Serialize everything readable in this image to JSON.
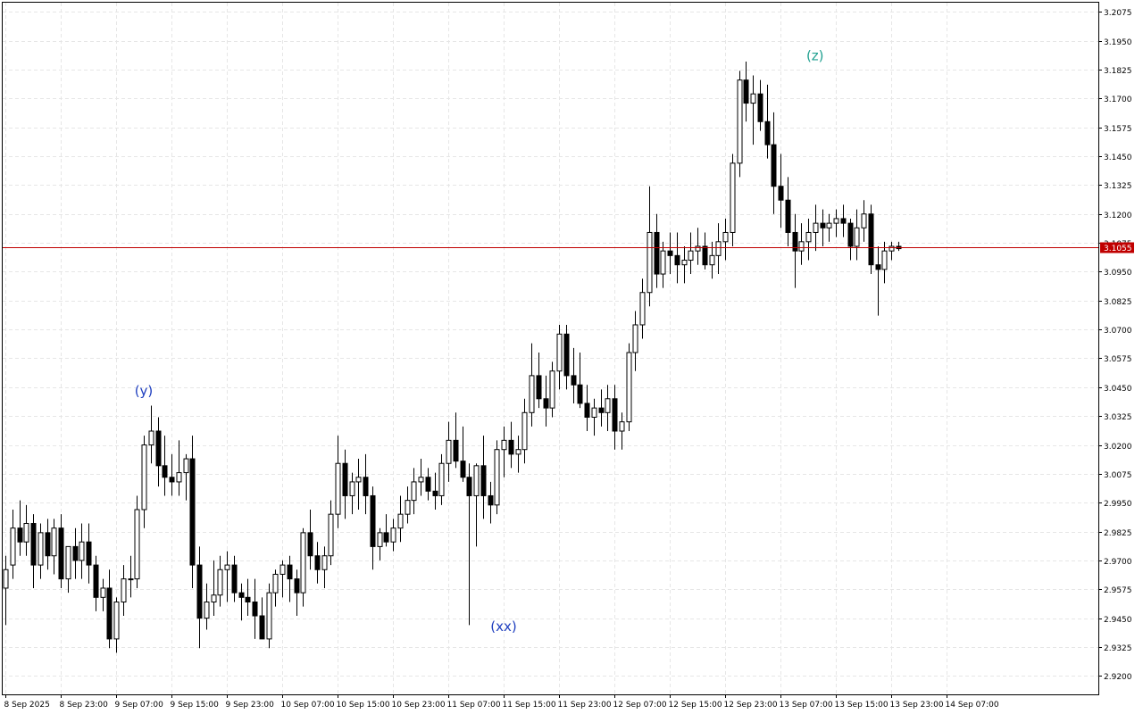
{
  "chart_data": {
    "type": "candlestick",
    "y_axis": {
      "ticks": [
        "3.2075",
        "3.1950",
        "3.1825",
        "3.1700",
        "3.1575",
        "3.1450",
        "3.1325",
        "3.1200",
        "3.1075",
        "3.0950",
        "3.0825",
        "3.0700",
        "3.0575",
        "3.0450",
        "3.0325",
        "3.0200",
        "3.0075",
        "2.9950",
        "2.9825",
        "2.9700",
        "2.9575",
        "2.9450",
        "2.9325",
        "2.9200"
      ],
      "range": [
        2.912,
        3.2115
      ],
      "side": "right"
    },
    "x_axis": {
      "ticks": [
        {
          "label": "8 Sep 2025",
          "bar": 0
        },
        {
          "label": "8 Sep 23:00",
          "bar": 8
        },
        {
          "label": "9 Sep 07:00",
          "bar": 16
        },
        {
          "label": "9 Sep 15:00",
          "bar": 24
        },
        {
          "label": "9 Sep 23:00",
          "bar": 32
        },
        {
          "label": "10 Sep 07:00",
          "bar": 40
        },
        {
          "label": "10 Sep 15:00",
          "bar": 48
        },
        {
          "label": "10 Sep 23:00",
          "bar": 56
        },
        {
          "label": "11 Sep 07:00",
          "bar": 64
        },
        {
          "label": "11 Sep 15:00",
          "bar": 72
        },
        {
          "label": "11 Sep 23:00",
          "bar": 80
        },
        {
          "label": "12 Sep 07:00",
          "bar": 88
        },
        {
          "label": "12 Sep 15:00",
          "bar": 96
        },
        {
          "label": "12 Sep 23:00",
          "bar": 104
        },
        {
          "label": "13 Sep 07:00",
          "bar": 112
        },
        {
          "label": "13 Sep 15:00",
          "bar": 120
        },
        {
          "label": "13 Sep 23:00",
          "bar": 128
        },
        {
          "label": "14 Sep 07:00",
          "bar": 136
        }
      ]
    },
    "grid": true,
    "current_price": {
      "value": 3.1055,
      "label": "3.1055",
      "color": "#c00000"
    },
    "annotations": [
      {
        "text": "(y)",
        "bar": 20,
        "price": 3.0415,
        "color": "#1f3fbf"
      },
      {
        "text": "(xx)",
        "bar": 72,
        "price": 2.9395,
        "color": "#1f3fbf"
      },
      {
        "text": "(z)",
        "bar": 117,
        "price": 3.1865,
        "color": "#20a090"
      }
    ],
    "candles": [
      [
        2.958,
        2.972,
        2.942,
        2.966
      ],
      [
        2.968,
        2.992,
        2.962,
        2.984
      ],
      [
        2.984,
        2.996,
        2.972,
        2.978
      ],
      [
        2.978,
        2.994,
        2.972,
        2.986
      ],
      [
        2.986,
        2.99,
        2.958,
        2.968
      ],
      [
        2.968,
        2.986,
        2.962,
        2.982
      ],
      [
        2.982,
        2.988,
        2.966,
        2.972
      ],
      [
        2.972,
        2.988,
        2.964,
        2.984
      ],
      [
        2.984,
        2.99,
        2.958,
        2.962
      ],
      [
        2.962,
        2.976,
        2.956,
        2.976
      ],
      [
        2.976,
        2.984,
        2.962,
        2.97
      ],
      [
        2.97,
        2.986,
        2.962,
        2.978
      ],
      [
        2.978,
        2.986,
        2.96,
        2.968
      ],
      [
        2.968,
        2.972,
        2.948,
        2.954
      ],
      [
        2.954,
        2.962,
        2.948,
        2.958
      ],
      [
        2.958,
        2.966,
        2.932,
        2.936
      ],
      [
        2.936,
        2.954,
        2.93,
        2.952
      ],
      [
        2.952,
        2.968,
        2.946,
        2.962
      ],
      [
        2.962,
        2.972,
        2.954,
        2.962
      ],
      [
        2.962,
        2.998,
        2.958,
        2.992
      ],
      [
        2.992,
        3.024,
        2.984,
        3.02
      ],
      [
        3.02,
        3.037,
        3.012,
        3.026
      ],
      [
        3.026,
        3.032,
        3.002,
        3.011
      ],
      [
        3.011,
        3.024,
        2.998,
        3.006
      ],
      [
        3.006,
        3.016,
        2.998,
        3.004
      ],
      [
        3.004,
        3.022,
        2.998,
        3.008
      ],
      [
        3.008,
        3.016,
        2.996,
        3.014
      ],
      [
        3.014,
        3.024,
        2.958,
        2.968
      ],
      [
        2.968,
        2.976,
        2.932,
        2.945
      ],
      [
        2.945,
        2.96,
        2.94,
        2.952
      ],
      [
        2.952,
        2.97,
        2.946,
        2.955
      ],
      [
        2.955,
        2.972,
        2.95,
        2.966
      ],
      [
        2.966,
        2.974,
        2.952,
        2.968
      ],
      [
        2.968,
        2.972,
        2.952,
        2.956
      ],
      [
        2.956,
        2.96,
        2.944,
        2.954
      ],
      [
        2.954,
        2.962,
        2.946,
        2.952
      ],
      [
        2.952,
        2.962,
        2.936,
        2.946
      ],
      [
        2.946,
        2.954,
        2.936,
        2.936
      ],
      [
        2.936,
        2.96,
        2.932,
        2.956
      ],
      [
        2.956,
        2.966,
        2.95,
        2.964
      ],
      [
        2.964,
        2.97,
        2.954,
        2.968
      ],
      [
        2.968,
        2.972,
        2.952,
        2.962
      ],
      [
        2.962,
        2.966,
        2.946,
        2.956
      ],
      [
        2.956,
        2.984,
        2.95,
        2.982
      ],
      [
        2.982,
        2.992,
        2.966,
        2.972
      ],
      [
        2.972,
        2.978,
        2.96,
        2.966
      ],
      [
        2.966,
        2.976,
        2.958,
        2.972
      ],
      [
        2.972,
        2.996,
        2.968,
        2.99
      ],
      [
        2.99,
        3.024,
        2.984,
        3.012
      ],
      [
        3.012,
        3.018,
        2.988,
        2.998
      ],
      [
        2.998,
        3.008,
        2.99,
        3.004
      ],
      [
        3.004,
        3.014,
        2.992,
        3.006
      ],
      [
        3.006,
        3.016,
        2.99,
        2.998
      ],
      [
        2.998,
        3.002,
        2.966,
        2.976
      ],
      [
        2.976,
        2.984,
        2.97,
        2.982
      ],
      [
        2.982,
        2.99,
        2.976,
        2.978
      ],
      [
        2.978,
        2.988,
        2.974,
        2.984
      ],
      [
        2.984,
        2.998,
        2.978,
        2.99
      ],
      [
        2.99,
        3.002,
        2.986,
        2.996
      ],
      [
        2.996,
        3.01,
        2.99,
        3.004
      ],
      [
        3.004,
        3.014,
        2.998,
        3.006
      ],
      [
        3.006,
        3.01,
        2.996,
        3.0
      ],
      [
        3.0,
        3.008,
        2.992,
        2.998
      ],
      [
        2.998,
        3.016,
        2.994,
        3.012
      ],
      [
        3.012,
        3.03,
        3.004,
        3.022
      ],
      [
        3.022,
        3.034,
        3.01,
        3.013
      ],
      [
        3.013,
        3.028,
        3.004,
        3.006
      ],
      [
        3.006,
        3.012,
        2.942,
        2.998
      ],
      [
        2.998,
        3.012,
        2.976,
        3.011
      ],
      [
        3.011,
        3.024,
        2.988,
        2.998
      ],
      [
        2.998,
        3.004,
        2.986,
        2.994
      ],
      [
        2.994,
        3.022,
        2.99,
        3.018
      ],
      [
        3.018,
        3.028,
        3.006,
        3.022
      ],
      [
        3.022,
        3.03,
        3.01,
        3.016
      ],
      [
        3.016,
        3.024,
        3.008,
        3.018
      ],
      [
        3.018,
        3.04,
        3.012,
        3.034
      ],
      [
        3.034,
        3.064,
        3.028,
        3.05
      ],
      [
        3.05,
        3.06,
        3.036,
        3.04
      ],
      [
        3.04,
        3.05,
        3.028,
        3.036
      ],
      [
        3.036,
        3.056,
        3.032,
        3.052
      ],
      [
        3.052,
        3.072,
        3.044,
        3.068
      ],
      [
        3.068,
        3.072,
        3.044,
        3.05
      ],
      [
        3.05,
        3.062,
        3.038,
        3.046
      ],
      [
        3.046,
        3.06,
        3.036,
        3.038
      ],
      [
        3.038,
        3.046,
        3.026,
        3.032
      ],
      [
        3.032,
        3.04,
        3.024,
        3.036
      ],
      [
        3.036,
        3.044,
        3.028,
        3.034
      ],
      [
        3.034,
        3.046,
        3.026,
        3.04
      ],
      [
        3.04,
        3.046,
        3.018,
        3.026
      ],
      [
        3.026,
        3.034,
        3.018,
        3.03
      ],
      [
        3.03,
        3.064,
        3.026,
        3.06
      ],
      [
        3.06,
        3.078,
        3.052,
        3.072
      ],
      [
        3.072,
        3.092,
        3.066,
        3.086
      ],
      [
        3.086,
        3.132,
        3.08,
        3.112
      ],
      [
        3.112,
        3.12,
        3.088,
        3.094
      ],
      [
        3.094,
        3.108,
        3.088,
        3.104
      ],
      [
        3.104,
        3.112,
        3.094,
        3.102
      ],
      [
        3.102,
        3.112,
        3.09,
        3.098
      ],
      [
        3.098,
        3.106,
        3.09,
        3.1
      ],
      [
        3.1,
        3.112,
        3.094,
        3.104
      ],
      [
        3.104,
        3.114,
        3.098,
        3.106
      ],
      [
        3.106,
        3.112,
        3.096,
        3.098
      ],
      [
        3.098,
        3.108,
        3.092,
        3.102
      ],
      [
        3.102,
        3.116,
        3.094,
        3.108
      ],
      [
        3.108,
        3.118,
        3.1,
        3.112
      ],
      [
        3.112,
        3.146,
        3.106,
        3.142
      ],
      [
        3.142,
        3.182,
        3.136,
        3.178
      ],
      [
        3.178,
        3.186,
        3.16,
        3.168
      ],
      [
        3.168,
        3.18,
        3.15,
        3.172
      ],
      [
        3.172,
        3.178,
        3.156,
        3.16
      ],
      [
        3.16,
        3.176,
        3.144,
        3.15
      ],
      [
        3.15,
        3.164,
        3.12,
        3.132
      ],
      [
        3.132,
        3.146,
        3.114,
        3.126
      ],
      [
        3.126,
        3.136,
        3.106,
        3.112
      ],
      [
        3.112,
        3.12,
        3.088,
        3.104
      ],
      [
        3.104,
        3.116,
        3.098,
        3.108
      ],
      [
        3.108,
        3.118,
        3.1,
        3.112
      ],
      [
        3.112,
        3.124,
        3.104,
        3.116
      ],
      [
        3.116,
        3.122,
        3.106,
        3.114
      ],
      [
        3.114,
        3.12,
        3.108,
        3.116
      ],
      [
        3.116,
        3.122,
        3.11,
        3.118
      ],
      [
        3.118,
        3.124,
        3.11,
        3.116
      ],
      [
        3.116,
        3.118,
        3.1,
        3.106
      ],
      [
        3.106,
        3.122,
        3.1,
        3.114
      ],
      [
        3.114,
        3.126,
        3.108,
        3.12
      ],
      [
        3.12,
        3.124,
        3.094,
        3.098
      ],
      [
        3.098,
        3.106,
        3.076,
        3.096
      ],
      [
        3.096,
        3.108,
        3.09,
        3.104
      ],
      [
        3.104,
        3.108,
        3.1,
        3.106
      ],
      [
        3.106,
        3.108,
        3.104,
        3.105
      ]
    ]
  }
}
